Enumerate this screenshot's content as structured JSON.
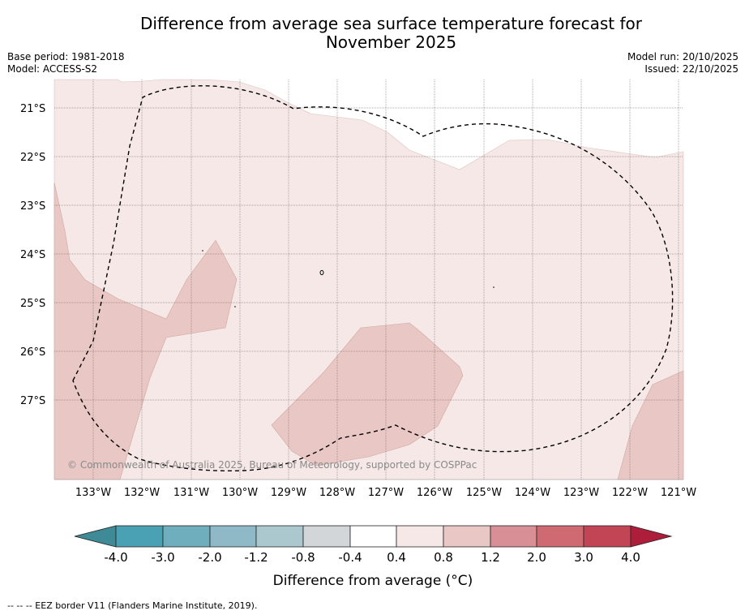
{
  "title_line1": "Difference from average sea surface temperature forecast for",
  "title_line2": "November 2025",
  "left_info": {
    "base_period": "Base period: 1981-2018",
    "model": "Model: ACCESS-S2"
  },
  "right_info": {
    "model_run": "Model run: 20/10/2025",
    "issued": "Issued: 22/10/2025"
  },
  "map": {
    "lat_labels": [
      "21°S",
      "22°S",
      "23°S",
      "24°S",
      "25°S",
      "26°S",
      "27°S"
    ],
    "lon_labels": [
      "133°W",
      "132°W",
      "131°W",
      "130°W",
      "129°W",
      "128°W",
      "127°W",
      "126°W",
      "125°W",
      "124°W",
      "123°W",
      "122°W",
      "121°W"
    ],
    "copyright": "© Commonwealth of Australia 2025, Bureau of Meteorology, supported by COSPPac",
    "colors": {
      "anomaly_0_4_to_0_8": "#f5e8e7",
      "anomaly_0_8_to_1_2": "#e8c7c4",
      "eez_line": "#000000"
    }
  },
  "colorbar": {
    "title": "Difference from average (°C)",
    "tick_labels": [
      "-4.0",
      "-3.0",
      "-2.0",
      "-1.2",
      "-0.8",
      "-0.4",
      "0.4",
      "0.8",
      "1.2",
      "2.0",
      "3.0",
      "4.0"
    ],
    "colors": [
      "#3e8a96",
      "#4aa1b3",
      "#6eaebd",
      "#8fb9c6",
      "#aac8ce",
      "#d3d6d9",
      "#ffffff",
      "#f5e8e7",
      "#e8c7c4",
      "#d88f96",
      "#cf6a72",
      "#c14555",
      "#ae1e3a"
    ]
  },
  "footnote": "--  --  -- EEZ border V11 (Flanders Marine Institute, 2019)."
}
